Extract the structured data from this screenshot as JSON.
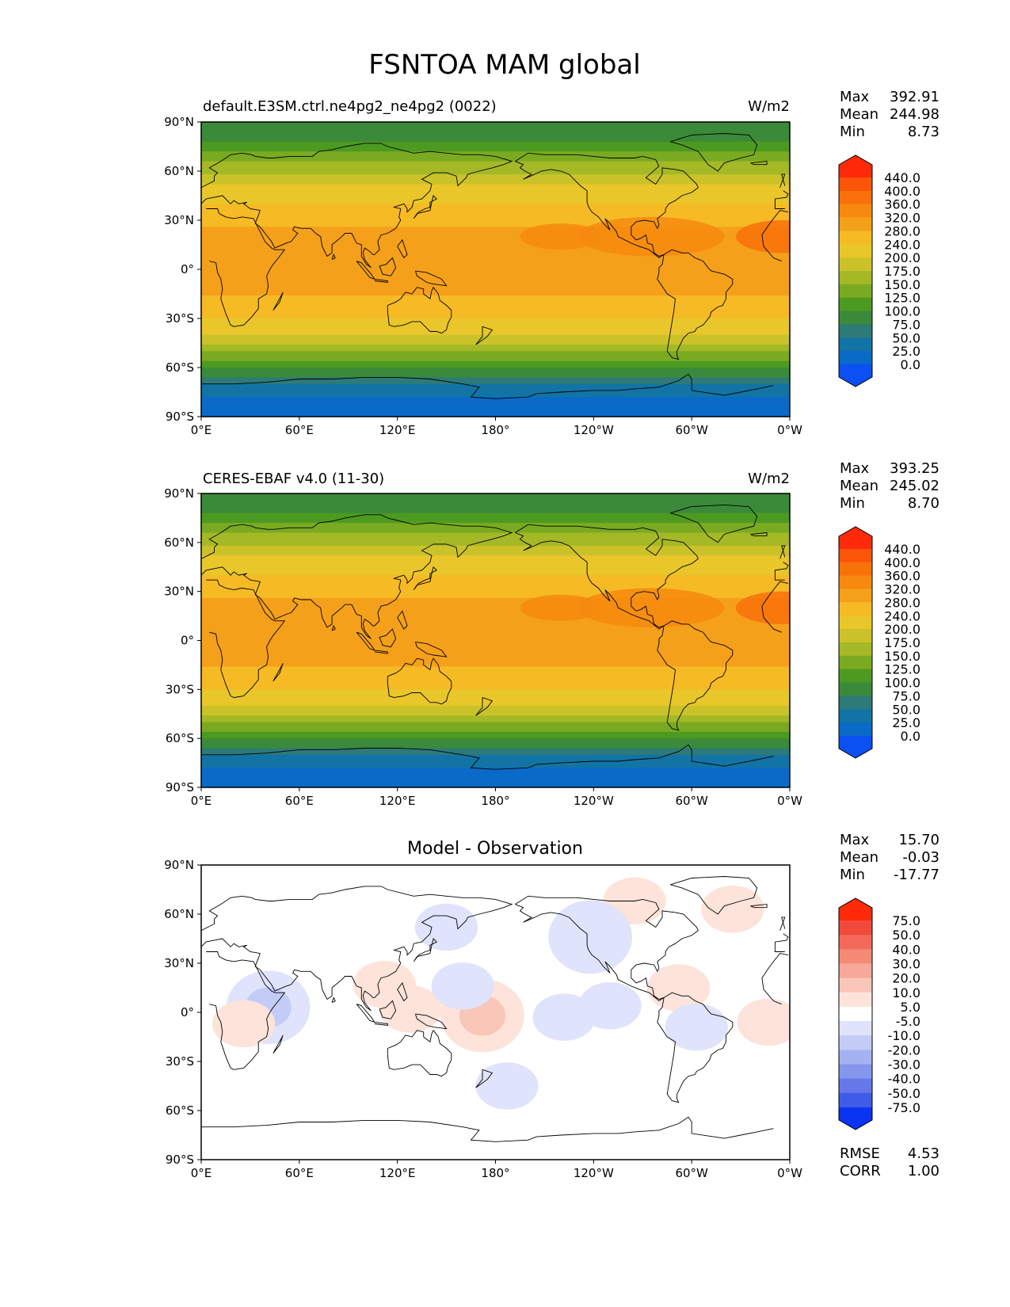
{
  "figure": {
    "title": "FSNTOA MAM global"
  },
  "axes": {
    "lat_labels": [
      "90°N",
      "60°N",
      "30°N",
      "0°",
      "30°S",
      "60°S",
      "90°S"
    ],
    "lon_labels": [
      "0°E",
      "60°E",
      "120°E",
      "180°",
      "120°W",
      "60°W",
      "0°W"
    ]
  },
  "panels": [
    {
      "id": "model",
      "title_left": "default.E3SM.ctrl.ne4pg2_ne4pg2 (0022)",
      "title_right": "W/m2",
      "stats": [
        {
          "label": "Max",
          "value": "392.91"
        },
        {
          "label": "Mean",
          "value": "244.98"
        },
        {
          "label": "Min",
          "value": "8.73"
        }
      ]
    },
    {
      "id": "obs",
      "title_left": "CERES-EBAF v4.0 (11-30)",
      "title_right": "W/m2",
      "stats": [
        {
          "label": "Max",
          "value": "393.25"
        },
        {
          "label": "Mean",
          "value": "245.02"
        },
        {
          "label": "Min",
          "value": "8.70"
        }
      ]
    },
    {
      "id": "diff",
      "title_center": "Model - Observation",
      "stats": [
        {
          "label": "Max",
          "value": "15.70"
        },
        {
          "label": "Mean",
          "value": "-0.03"
        },
        {
          "label": "Min",
          "value": "-17.77"
        }
      ],
      "metrics": [
        {
          "label": "RMSE",
          "value": "4.53"
        },
        {
          "label": "CORR",
          "value": "1.00"
        }
      ]
    }
  ],
  "colorbars": {
    "field": {
      "labels": [
        "440.0",
        "400.0",
        "360.0",
        "320.0",
        "280.0",
        "240.0",
        "200.0",
        "175.0",
        "150.0",
        "125.0",
        "100.0",
        "75.0",
        "50.0",
        "25.0",
        "0.0"
      ],
      "colors": [
        "#ff2a0a",
        "#fb5509",
        "#f8710a",
        "#f68a0e",
        "#f5a01a",
        "#f6ba25",
        "#e9c62a",
        "#cbc22a",
        "#a5b826",
        "#7aaa21",
        "#4d9a20",
        "#3a8a3a",
        "#2e7a78",
        "#1274a4",
        "#0a6ac8",
        "#0b50f2"
      ]
    },
    "diff": {
      "labels": [
        "75.0",
        "50.0",
        "40.0",
        "30.0",
        "20.0",
        "10.0",
        "5.0",
        "-5.0",
        "-10.0",
        "-20.0",
        "-30.0",
        "-40.0",
        "-50.0",
        "-75.0"
      ],
      "colors": [
        "#ff2a0a",
        "#f04a3a",
        "#f36a58",
        "#f48a76",
        "#f7a898",
        "#fac6b8",
        "#fde3da",
        "#ffffff",
        "#dfe3fb",
        "#c3ccf6",
        "#a5b2f1",
        "#8596ed",
        "#6478ea",
        "#3f5ce8",
        "#0b33f2"
      ]
    }
  },
  "chart_data": [
    {
      "type": "heatmap",
      "title": "default.E3SM.ctrl.ne4pg2_ne4pg2 (0022)",
      "units": "W/m2",
      "projection": "PlateCarree",
      "x_range": [
        0,
        360
      ],
      "y_range": [
        -90,
        90
      ],
      "zonal_profile": {
        "lat": [
          90,
          80,
          70,
          60,
          50,
          40,
          30,
          20,
          10,
          0,
          -10,
          -20,
          -30,
          -40,
          -50,
          -60,
          -70,
          -80,
          -90
        ],
        "value": [
          75,
          95,
          135,
          165,
          205,
          240,
          270,
          300,
          300,
          290,
          285,
          275,
          240,
          200,
          150,
          100,
          50,
          15,
          5
        ]
      },
      "stats": {
        "max": 392.91,
        "mean": 244.98,
        "min": 8.73
      }
    },
    {
      "type": "heatmap",
      "title": "CERES-EBAF v4.0 (11-30)",
      "units": "W/m2",
      "projection": "PlateCarree",
      "x_range": [
        0,
        360
      ],
      "y_range": [
        -90,
        90
      ],
      "zonal_profile": {
        "lat": [
          90,
          80,
          70,
          60,
          50,
          40,
          30,
          20,
          10,
          0,
          -10,
          -20,
          -30,
          -40,
          -50,
          -60,
          -70,
          -80,
          -90
        ],
        "value": [
          75,
          95,
          135,
          165,
          205,
          240,
          270,
          300,
          300,
          290,
          285,
          275,
          240,
          200,
          150,
          100,
          50,
          15,
          5
        ]
      },
      "stats": {
        "max": 393.25,
        "mean": 245.02,
        "min": 8.7
      }
    },
    {
      "type": "heatmap",
      "title": "Model - Observation",
      "projection": "PlateCarree",
      "x_range": [
        0,
        360
      ],
      "y_range": [
        -90,
        90
      ],
      "anomalies": [
        {
          "lon": 172,
          "lat": -2,
          "value": 12
        },
        {
          "lon": 128,
          "lat": 2,
          "value": 8
        },
        {
          "lon": 112,
          "lat": 17,
          "value": 6
        },
        {
          "lon": 292,
          "lat": 15,
          "value": 8
        },
        {
          "lon": 265,
          "lat": 68,
          "value": 8
        },
        {
          "lon": 325,
          "lat": 63,
          "value": 6
        },
        {
          "lon": 41,
          "lat": 3,
          "value": -10
        },
        {
          "lon": 238,
          "lat": 46,
          "value": -9
        },
        {
          "lon": 160,
          "lat": 16,
          "value": -6
        },
        {
          "lon": 150,
          "lat": 52,
          "value": -5
        },
        {
          "lon": 303,
          "lat": -9,
          "value": -6
        },
        {
          "lon": 222,
          "lat": -3,
          "value": -5
        },
        {
          "lon": 250,
          "lat": 4,
          "value": -6
        },
        {
          "lon": 187,
          "lat": -45,
          "value": -5
        },
        {
          "lon": 347,
          "lat": -6,
          "value": 6
        },
        {
          "lon": 26,
          "lat": -7,
          "value": 5
        }
      ],
      "stats": {
        "max": 15.7,
        "mean": -0.03,
        "min": -17.77,
        "rmse": 4.53,
        "corr": 1.0
      }
    }
  ]
}
